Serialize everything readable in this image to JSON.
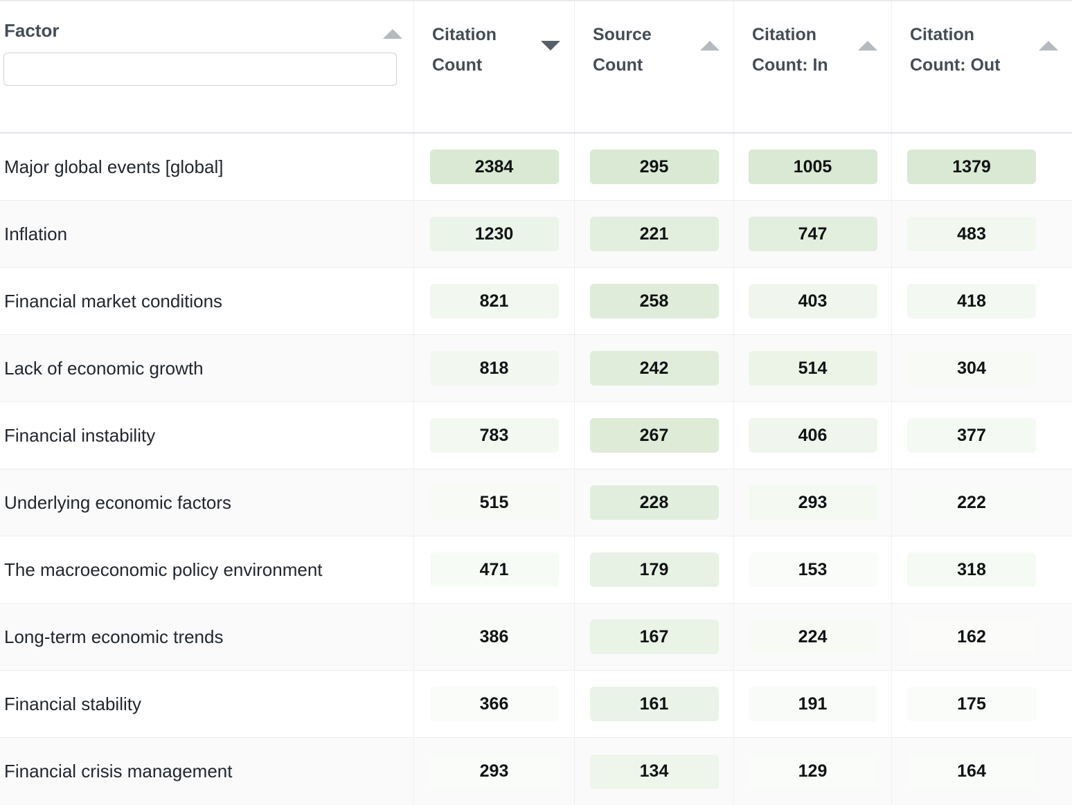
{
  "table": {
    "columns": [
      {
        "key": "factor",
        "label": "Factor",
        "sort": "unsorted",
        "filter_value": "",
        "filter_placeholder": ""
      },
      {
        "key": "citation_count",
        "label": "Citation Count",
        "sort": "descending"
      },
      {
        "key": "source_count",
        "label": "Source Count",
        "sort": "unsorted"
      },
      {
        "key": "citation_count_in",
        "label": "Citation Count: In",
        "sort": "unsorted"
      },
      {
        "key": "citation_count_out",
        "label": "Citation Count: Out",
        "sort": "unsorted"
      }
    ],
    "rows": [
      {
        "factor": "Major global events [global]",
        "citation_count": 2384,
        "source_count": 295,
        "citation_count_in": 1005,
        "citation_count_out": 1379
      },
      {
        "factor": "Inflation",
        "citation_count": 1230,
        "source_count": 221,
        "citation_count_in": 747,
        "citation_count_out": 483
      },
      {
        "factor": "Financial market conditions",
        "citation_count": 821,
        "source_count": 258,
        "citation_count_in": 403,
        "citation_count_out": 418
      },
      {
        "factor": "Lack of economic growth",
        "citation_count": 818,
        "source_count": 242,
        "citation_count_in": 514,
        "citation_count_out": 304
      },
      {
        "factor": "Financial instability",
        "citation_count": 783,
        "source_count": 267,
        "citation_count_in": 406,
        "citation_count_out": 377
      },
      {
        "factor": "Underlying economic factors",
        "citation_count": 515,
        "source_count": 228,
        "citation_count_in": 293,
        "citation_count_out": 222
      },
      {
        "factor": "The macroeconomic policy environment",
        "citation_count": 471,
        "source_count": 179,
        "citation_count_in": 153,
        "citation_count_out": 318
      },
      {
        "factor": "Long-term economic trends",
        "citation_count": 386,
        "source_count": 167,
        "citation_count_in": 224,
        "citation_count_out": 162
      },
      {
        "factor": "Financial stability",
        "citation_count": 366,
        "source_count": 161,
        "citation_count_in": 191,
        "citation_count_out": 175
      },
      {
        "factor": "Financial crisis management",
        "citation_count": 293,
        "source_count": 134,
        "citation_count_in": 129,
        "citation_count_out": 164
      }
    ]
  },
  "colors": {
    "badge_green_max": "#d9e9d3",
    "row_alt_background": "#fafafb",
    "row_separator": "#ededef",
    "column_separator": "#eef0f2",
    "header_border": "#e1e4e8",
    "header_text": "#454c54",
    "cell_text": "#22272d",
    "sort_arrow_active": "#575f67",
    "sort_arrow_inactive": "#b6babe"
  }
}
